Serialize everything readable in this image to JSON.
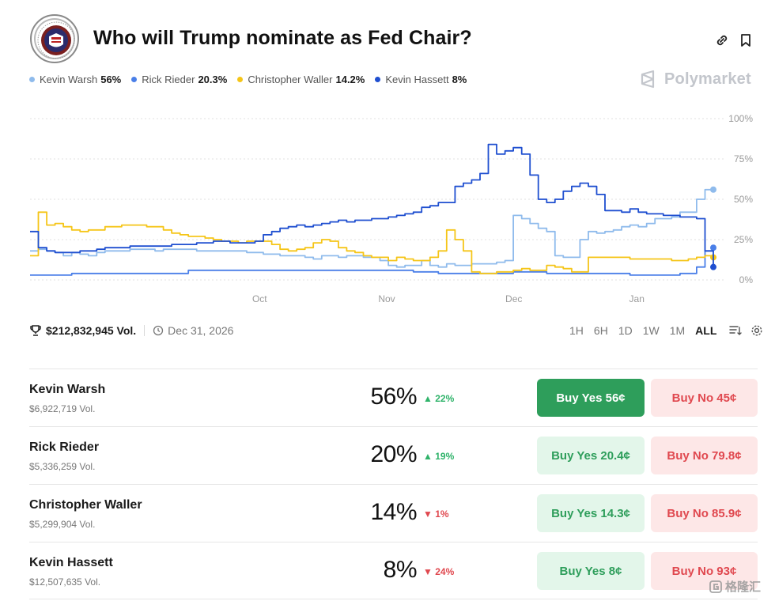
{
  "header": {
    "title": "Who will Trump nominate as Fed Chair?"
  },
  "legend": [
    {
      "name": "Kevin Warsh",
      "value": "56%",
      "color": "#8fbbec"
    },
    {
      "name": "Rick Rieder",
      "value": "20.3%",
      "color": "#4a7fe8"
    },
    {
      "name": "Christopher Waller",
      "value": "14.2%",
      "color": "#f5c518"
    },
    {
      "name": "Kevin Hassett",
      "value": "8%",
      "color": "#1f4fd0"
    }
  ],
  "brand": {
    "name": "Polymarket"
  },
  "chart_data": {
    "type": "line",
    "y_ticks": [
      "100%",
      "75%",
      "50%",
      "25%",
      "0%"
    ],
    "x_ticks": [
      "Oct",
      "Nov",
      "Dec",
      "Jan"
    ],
    "ylim": [
      0,
      100
    ],
    "grid": true,
    "series": [
      {
        "name": "Kevin Warsh",
        "color": "#8fbbec",
        "values": [
          18,
          19,
          18,
          17,
          15,
          17,
          16,
          15,
          17,
          18,
          18,
          18,
          19,
          19,
          19,
          18,
          19,
          19,
          19,
          19,
          18,
          18,
          18,
          18,
          18,
          18,
          17,
          17,
          16,
          16,
          15,
          15,
          15,
          14,
          13,
          15,
          15,
          14,
          15,
          15,
          14,
          14,
          12,
          9,
          8,
          9,
          9,
          12,
          9,
          8,
          10,
          9,
          9,
          10,
          10,
          10,
          11,
          12,
          40,
          38,
          35,
          32,
          30,
          15,
          14,
          14,
          25,
          30,
          29,
          30,
          31,
          33,
          34,
          33,
          35,
          38,
          38,
          39,
          42,
          42,
          50,
          56,
          56
        ]
      },
      {
        "name": "Rick Rieder",
        "color": "#4a7fe8",
        "values": [
          3,
          3,
          3,
          3,
          3,
          4,
          4,
          4,
          4,
          4,
          4,
          4,
          4,
          4,
          4,
          4,
          4,
          4,
          4,
          6,
          6,
          6,
          6,
          6,
          6,
          6,
          6,
          6,
          6,
          6,
          6,
          6,
          6,
          6,
          6,
          6,
          6,
          6,
          6,
          6,
          6,
          6,
          6,
          6,
          6,
          6,
          5,
          5,
          5,
          4,
          4,
          4,
          4,
          4,
          4,
          4,
          4,
          4,
          5,
          5,
          5,
          5,
          4,
          4,
          4,
          4,
          4,
          4,
          4,
          4,
          4,
          4,
          3,
          3,
          3,
          3,
          3,
          3,
          4,
          4,
          8,
          18,
          20
        ]
      },
      {
        "name": "Christopher Waller",
        "color": "#f5c518",
        "values": [
          15,
          42,
          34,
          35,
          33,
          31,
          30,
          31,
          31,
          33,
          33,
          34,
          34,
          34,
          33,
          33,
          31,
          29,
          28,
          27,
          27,
          26,
          25,
          24,
          24,
          23,
          24,
          24,
          24,
          22,
          19,
          18,
          19,
          20,
          23,
          25,
          24,
          20,
          18,
          17,
          15,
          14,
          14,
          12,
          14,
          13,
          12,
          12,
          14,
          18,
          31,
          25,
          18,
          5,
          4,
          4,
          5,
          5,
          6,
          7,
          6,
          6,
          9,
          8,
          7,
          5,
          5,
          14,
          14,
          14,
          14,
          14,
          13,
          13,
          13,
          13,
          13,
          12,
          12,
          13,
          14,
          15,
          14
        ]
      },
      {
        "name": "Kevin Hassett",
        "color": "#1f4fd0",
        "values": [
          30,
          20,
          18,
          17,
          17,
          17,
          18,
          18,
          19,
          20,
          20,
          20,
          21,
          21,
          21,
          21,
          21,
          22,
          22,
          22,
          23,
          23,
          24,
          24,
          23,
          23,
          23,
          24,
          28,
          30,
          32,
          33,
          34,
          33,
          34,
          35,
          36,
          37,
          36,
          37,
          37,
          38,
          38,
          39,
          40,
          41,
          42,
          45,
          46,
          48,
          48,
          58,
          60,
          62,
          66,
          84,
          78,
          80,
          82,
          78,
          65,
          50,
          48,
          50,
          55,
          58,
          60,
          58,
          53,
          43,
          43,
          42,
          44,
          42,
          41,
          41,
          40,
          40,
          39,
          39,
          38,
          18,
          8
        ]
      }
    ]
  },
  "meta": {
    "volume": "$212,832,945 Vol.",
    "end_date": "Dec 31, 2026"
  },
  "ranges": [
    "1H",
    "6H",
    "1D",
    "1W",
    "1M",
    "ALL"
  ],
  "outcomes": [
    {
      "name": "Kevin Warsh",
      "volume": "$6,922,719 Vol.",
      "prob": "56%",
      "change": "22%",
      "dir": "up",
      "yes": "Buy Yes 56¢",
      "no": "Buy No 45¢"
    },
    {
      "name": "Rick Rieder",
      "volume": "$5,336,259 Vol.",
      "prob": "20%",
      "change": "19%",
      "dir": "up",
      "yes": "Buy Yes 20.4¢",
      "no": "Buy No 79.8¢"
    },
    {
      "name": "Christopher Waller",
      "volume": "$5,299,904 Vol.",
      "prob": "14%",
      "change": "1%",
      "dir": "down",
      "yes": "Buy Yes 14.3¢",
      "no": "Buy No 85.9¢"
    },
    {
      "name": "Kevin Hassett",
      "volume": "$12,507,635 Vol.",
      "prob": "8%",
      "change": "24%",
      "dir": "down",
      "yes": "Buy Yes 8¢",
      "no": "Buy No 93¢"
    }
  ],
  "watermark": "格隆汇"
}
